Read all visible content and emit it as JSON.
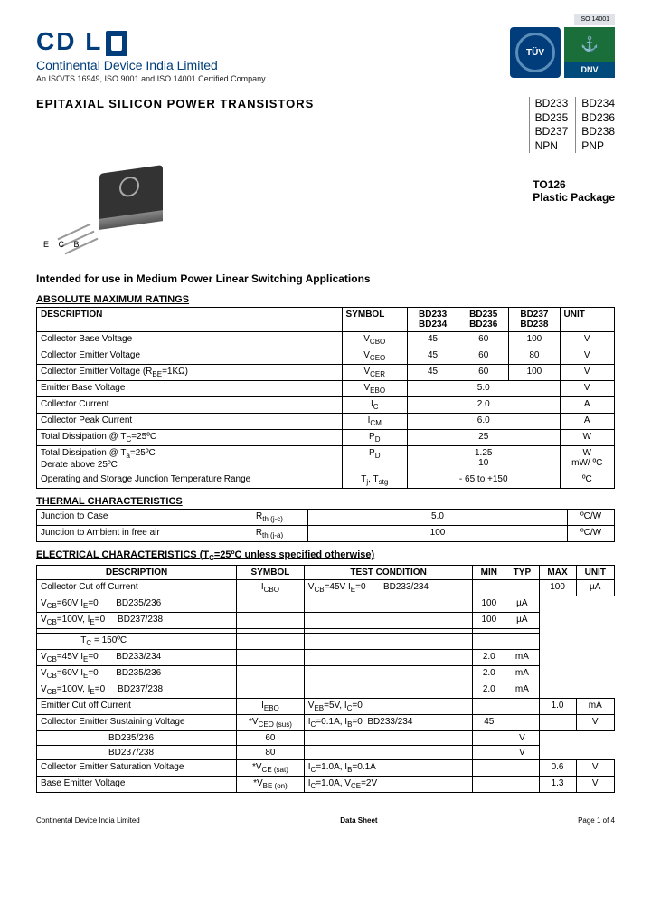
{
  "header": {
    "brand_text": "CD L",
    "company": "Continental Device India Limited",
    "cert_line": "An ISO/TS 16949, ISO 9001 and ISO 14001 Certified Company",
    "tuv_text": "TÜV",
    "dnv_icon": "⚓",
    "dnv_text": "DNV",
    "iso_tag": "ISO 14001"
  },
  "title": "EPITAXIAL SILICON  POWER  TRANSISTORS",
  "part_numbers": {
    "left": [
      "BD233",
      "BD235",
      "BD237",
      "NPN"
    ],
    "right": [
      "BD234",
      "BD236",
      "BD238",
      "PNP"
    ]
  },
  "package": {
    "name": "TO126",
    "type": "Plastic Package",
    "pins": "E C B"
  },
  "intended": "Intended for use in Medium Power Linear Switching Applications",
  "amr": {
    "title": "ABSOLUTE MAXIMUM RATINGS",
    "head": [
      "DESCRIPTION",
      "SYMBOL",
      "BD233\nBD234",
      "BD235\nBD236",
      "BD237\nBD238",
      "UNIT"
    ],
    "rows": [
      {
        "d": "Collector Base Voltage",
        "s": "V<CBO>",
        "v": [
          "45",
          "60",
          "100"
        ],
        "u": "V"
      },
      {
        "d": "Collector Emitter Voltage",
        "s": "V<CEO>",
        "v": [
          "45",
          "60",
          "80"
        ],
        "u": "V"
      },
      {
        "d": "Collector Emitter Voltage (R<BE>=1KΩ)",
        "s": "V<CER>",
        "v": [
          "45",
          "60",
          "100"
        ],
        "u": "V"
      },
      {
        "d": "Emitter Base Voltage",
        "s": "V<EBO>",
        "v": [
          "5.0"
        ],
        "u": "V"
      },
      {
        "d": "Collector Current",
        "s": "I<C>",
        "v": [
          "2.0"
        ],
        "u": "A"
      },
      {
        "d": "Collector Peak Current",
        "s": "I<CM>",
        "v": [
          "6.0"
        ],
        "u": "A"
      },
      {
        "d": "Total Dissipation @ T<C>=25ºC",
        "s": "P<D>",
        "v": [
          "25"
        ],
        "u": "W"
      },
      {
        "d": "Total Dissipation @ T<a>=25ºC\n                             Derate above 25ºC",
        "s": "P<D>",
        "v": [
          "1.25\n10"
        ],
        "u": "W\nmW/ ºC"
      },
      {
        "d": "Operating and Storage Junction Temperature Range",
        "s": "T<j>, T<stg>",
        "v": [
          "- 65  to +150"
        ],
        "u": "ºC"
      }
    ]
  },
  "thermal": {
    "title": "THERMAL CHARACTERISTICS",
    "rows": [
      {
        "d": "Junction to Case",
        "s": "R<th (j-c)>",
        "v": "5.0",
        "u": "ºC/W"
      },
      {
        "d": "Junction to Ambient in free air",
        "s": "R<th (j-a)>",
        "v": "100",
        "u": "ºC/W"
      }
    ]
  },
  "elec": {
    "title": "ELECTRICAL CHARACTERISTICS (T<C>=25ºC unless specified otherwise)",
    "head": [
      "DESCRIPTION",
      "SYMBOL",
      "TEST CONDITION",
      "MIN",
      "TYP",
      "MAX",
      "UNIT"
    ],
    "rows": [
      {
        "d": "Collector Cut off Current",
        "s": "I<CBO>",
        "tc": [
          "V<CB>=45V I<E>=0       BD233/234",
          "V<CB>=60V I<E>=0       BD235/236",
          "V<CB>=100V, I<E>=0     BD237/238",
          "",
          "                T<C> = 150ºC",
          "V<CB>=45V I<E>=0       BD233/234",
          "V<CB>=60V I<E>=0       BD235/236",
          "V<CB>=100V, I<E>=0     BD237/238"
        ],
        "min": [
          "",
          "",
          "",
          "",
          "",
          "",
          "",
          ""
        ],
        "typ": [
          "",
          "",
          "",
          "",
          "",
          "",
          "",
          ""
        ],
        "max": [
          "100",
          "100",
          "100",
          "",
          "",
          "2.0",
          "2.0",
          "2.0"
        ],
        "u": [
          "µA",
          "µA",
          "µA",
          "",
          "",
          "mA",
          "mA",
          "mA"
        ]
      },
      {
        "d": "Emitter Cut off Current",
        "s": "I<EBO>",
        "tc": [
          "V<EB>=5V, I<C>=0"
        ],
        "min": [
          ""
        ],
        "typ": [
          ""
        ],
        "max": [
          "1.0"
        ],
        "u": [
          "mA"
        ]
      },
      {
        "d": "Collector Emitter Sustaining Voltage",
        "s": "*V<CEO (sus)>",
        "tc": [
          "I<C>=0.1A, I<B>=0  BD233/234",
          "                           BD235/236",
          "                           BD237/238"
        ],
        "min": [
          "45",
          "60",
          "80"
        ],
        "typ": [
          "",
          "",
          ""
        ],
        "max": [
          "",
          "",
          ""
        ],
        "u": [
          "V",
          "V",
          "V"
        ]
      },
      {
        "d": "Collector Emitter Saturation Voltage",
        "s": "*V<CE (sat)>",
        "tc": [
          "I<C>=1.0A, I<B>=0.1A"
        ],
        "min": [
          ""
        ],
        "typ": [
          ""
        ],
        "max": [
          "0.6"
        ],
        "u": [
          "V"
        ]
      },
      {
        "d": "Base Emitter Voltage",
        "s": "*V<BE (on)>",
        "tc": [
          "I<C>=1.0A, V<CE>=2V"
        ],
        "min": [
          ""
        ],
        "typ": [
          ""
        ],
        "max": [
          "1.3"
        ],
        "u": [
          "V"
        ]
      }
    ]
  },
  "footer": {
    "left": "Continental Device India Limited",
    "center": "Data Sheet",
    "right": "Page 1 of 4"
  },
  "colors": {
    "brand": "#003d7a"
  }
}
